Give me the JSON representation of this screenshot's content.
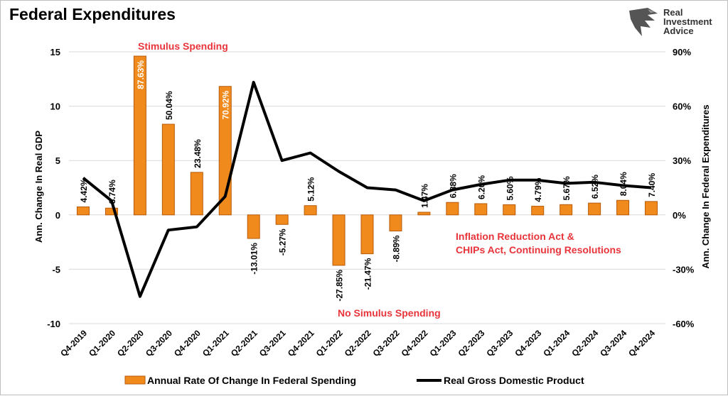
{
  "title": "Federal Expenditures",
  "logo": {
    "line1": "Real",
    "line2": "Investment",
    "line3": "Advice"
  },
  "colors": {
    "bar": "#f08a1c",
    "bar_dark": "#b85a0a",
    "line": "#000000",
    "annotation": "#e8343a",
    "grid": "#d9d9d9"
  },
  "annotations": {
    "stimulus": "Stimulus Spending",
    "no_stimulus": "No Simulus Spending",
    "ira_line1": "Inflation Reduction Act &",
    "ira_line2": "CHIPs Act, Continuing Resolutions"
  },
  "chart_data": {
    "type": "bar+line",
    "categories": [
      "Q4-2019",
      "Q1-2020",
      "Q2-2020",
      "Q3-2020",
      "Q4-2020",
      "Q1-2021",
      "Q2-2021",
      "Q3-2021",
      "Q4-2021",
      "Q1-2022",
      "Q2-2022",
      "Q3-2022",
      "Q4-2022",
      "Q1-2023",
      "Q2-2023",
      "Q3-2023",
      "Q4-2023",
      "Q1-2024",
      "Q2-2024",
      "Q3-2024",
      "Q4-2024"
    ],
    "series": [
      {
        "name": "Annual Rate Of Change In Federal Spending",
        "kind": "bar",
        "axis": "right",
        "values": [
          4.42,
          3.74,
          87.63,
          50.04,
          23.48,
          70.92,
          -13.01,
          -5.27,
          5.12,
          -27.85,
          -21.47,
          -8.89,
          1.47,
          6.88,
          6.2,
          5.6,
          4.79,
          5.67,
          6.52,
          8.04,
          7.4
        ],
        "labels": [
          "4.42%",
          "3.74%",
          "87.63%",
          "50.04%",
          "23.48%",
          "70.92%",
          "-13.01%",
          "-5.27%",
          "5.12%",
          "-27.85%",
          "-21.47%",
          "-8.89%",
          "1.47%",
          "6.88%",
          "6.20%",
          "5.60%",
          "4.79%",
          "5.67%",
          "6.52%",
          "8.04%",
          "7.40%"
        ]
      },
      {
        "name": "Real Gross Domestic Product",
        "kind": "line",
        "axis": "left",
        "values": [
          3.4,
          1.3,
          -7.5,
          -1.4,
          -1.1,
          1.7,
          12.2,
          5.0,
          5.7,
          4.0,
          2.5,
          2.3,
          1.3,
          2.3,
          2.8,
          3.2,
          3.2,
          2.9,
          3.0,
          2.7,
          2.5
        ]
      }
    ],
    "y_left": {
      "label": "Ann. Change In Real GDP",
      "min": -10,
      "max": 15,
      "ticks": [
        "-10",
        "-5",
        "0",
        "5",
        "10",
        "15"
      ],
      "tick_values": [
        -10,
        -5,
        0,
        5,
        10,
        15
      ]
    },
    "y_right": {
      "label": "Ann. Change In Federal Expenditures",
      "min": -60,
      "max": 90,
      "ticks": [
        "-60%",
        "-30%",
        "0%",
        "30%",
        "60%",
        "90%"
      ],
      "tick_values": [
        -60,
        -30,
        0,
        30,
        60,
        90
      ]
    },
    "grid": true,
    "legend_position": "bottom"
  }
}
